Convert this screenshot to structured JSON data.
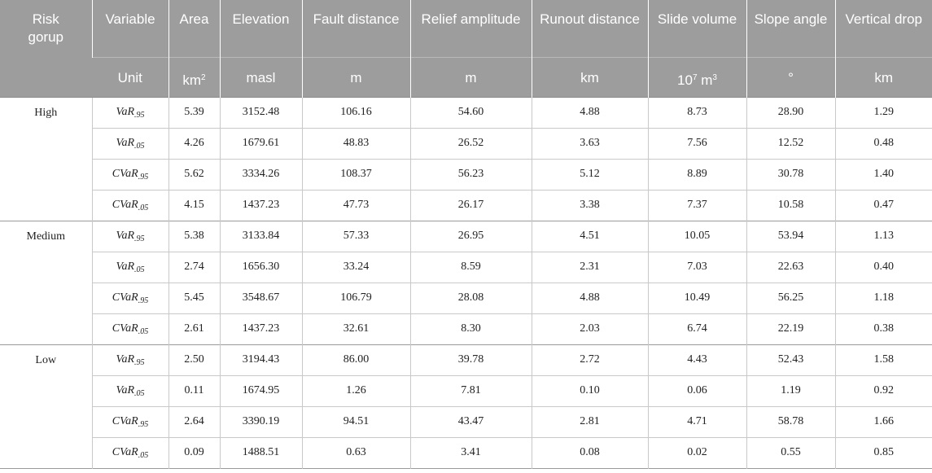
{
  "header": {
    "col0": "Risk gorup",
    "col1_top": "Variable",
    "col1_bottom": "Unit",
    "columns": [
      {
        "name": "Area",
        "unit": "km",
        "unit_sup": "2"
      },
      {
        "name": "Elevation",
        "unit": "masl",
        "unit_sup": ""
      },
      {
        "name": "Fault distance",
        "unit": "m",
        "unit_sup": ""
      },
      {
        "name": "Relief amplitude",
        "unit": "m",
        "unit_sup": ""
      },
      {
        "name": "Runout distance",
        "unit": "km",
        "unit_sup": ""
      },
      {
        "name": "Slide volume",
        "unit": "10",
        "unit_sup": "7",
        "unit_suffix": " m",
        "unit_suffix_sup": "3"
      },
      {
        "name": "Slope angle",
        "unit": "°",
        "unit_sup": ""
      },
      {
        "name": "Vertical drop",
        "unit": "km",
        "unit_sup": ""
      }
    ]
  },
  "groups": [
    {
      "name": "High",
      "rows": [
        {
          "var": "VaR",
          "sub": ".95",
          "values": [
            "5.39",
            "3152.48",
            "106.16",
            "54.60",
            "4.88",
            "8.73",
            "28.90",
            "1.29"
          ]
        },
        {
          "var": "VaR",
          "sub": ".05",
          "values": [
            "4.26",
            "1679.61",
            "48.83",
            "26.52",
            "3.63",
            "7.56",
            "12.52",
            "0.48"
          ]
        },
        {
          "var": "CVaR",
          "sub": ".95",
          "values": [
            "5.62",
            "3334.26",
            "108.37",
            "56.23",
            "5.12",
            "8.89",
            "30.78",
            "1.40"
          ]
        },
        {
          "var": "CVaR",
          "sub": ".05",
          "values": [
            "4.15",
            "1437.23",
            "47.73",
            "26.17",
            "3.38",
            "7.37",
            "10.58",
            "0.47"
          ]
        }
      ]
    },
    {
      "name": "Medium",
      "rows": [
        {
          "var": "VaR",
          "sub": ".95",
          "values": [
            "5.38",
            "3133.84",
            "57.33",
            "26.95",
            "4.51",
            "10.05",
            "53.94",
            "1.13"
          ]
        },
        {
          "var": "VaR",
          "sub": ".05",
          "values": [
            "2.74",
            "1656.30",
            "33.24",
            "8.59",
            "2.31",
            "7.03",
            "22.63",
            "0.40"
          ]
        },
        {
          "var": "CVaR",
          "sub": ".95",
          "values": [
            "5.45",
            "3548.67",
            "106.79",
            "28.08",
            "4.88",
            "10.49",
            "56.25",
            "1.18"
          ]
        },
        {
          "var": "CVaR",
          "sub": ".05",
          "values": [
            "2.61",
            "1437.23",
            "32.61",
            "8.30",
            "2.03",
            "6.74",
            "22.19",
            "0.38"
          ]
        }
      ]
    },
    {
      "name": "Low",
      "rows": [
        {
          "var": "VaR",
          "sub": ".95",
          "values": [
            "2.50",
            "3194.43",
            "86.00",
            "39.78",
            "2.72",
            "4.43",
            "52.43",
            "1.58"
          ]
        },
        {
          "var": "VaR",
          "sub": ".05",
          "values": [
            "0.11",
            "1674.95",
            "1.26",
            "7.81",
            "0.10",
            "0.06",
            "1.19",
            "0.92"
          ]
        },
        {
          "var": "CVaR",
          "sub": ".95",
          "values": [
            "2.64",
            "3390.19",
            "94.51",
            "43.47",
            "2.81",
            "4.71",
            "58.78",
            "1.66"
          ]
        },
        {
          "var": "CVaR",
          "sub": ".05",
          "values": [
            "0.09",
            "1488.51",
            "0.63",
            "3.41",
            "0.08",
            "0.02",
            "0.55",
            "0.85"
          ]
        }
      ]
    }
  ]
}
